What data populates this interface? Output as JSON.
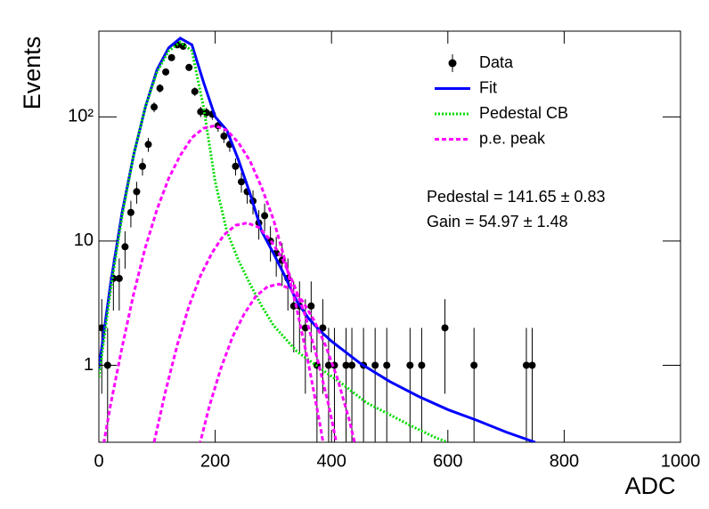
{
  "chart_data": {
    "type": "line",
    "xlabel": "ADC",
    "ylabel": "Events",
    "xlim": [
      0,
      1000
    ],
    "ylim": [
      0.24,
      490
    ],
    "log_y": true,
    "grid": false,
    "legend_position": "upper right",
    "xticks": [
      0,
      200,
      400,
      600,
      800,
      1000
    ],
    "yticks": [
      1,
      10,
      {
        "value": 100,
        "label": "10²"
      }
    ],
    "annotations": [
      "Pedestal = 141.65 ± 0.83",
      "Gain = 54.97 ± 1.48"
    ],
    "series": [
      {
        "name": "Data",
        "color": "#000000",
        "mode": "markers",
        "x": [
          5,
          15,
          25,
          35,
          45,
          55,
          65,
          75,
          85,
          95,
          105,
          115,
          125,
          135,
          145,
          155,
          165,
          175,
          185,
          195,
          205,
          215,
          225,
          235,
          245,
          255,
          265,
          275,
          285,
          295,
          305,
          315,
          325,
          335,
          345,
          355,
          365,
          375,
          385,
          395,
          405,
          425,
          435,
          455,
          475,
          495,
          535,
          555,
          595,
          645,
          735,
          745
        ],
        "values": [
          2,
          1,
          5,
          5,
          9,
          17,
          25,
          40,
          60,
          120,
          170,
          230,
          300,
          380,
          370,
          250,
          160,
          110,
          108,
          105,
          85,
          70,
          60,
          40,
          30,
          25,
          21,
          14,
          16,
          10,
          8,
          7,
          5,
          3,
          3,
          2,
          3,
          1,
          2,
          1,
          1,
          1,
          1,
          1,
          1,
          1,
          1,
          1,
          2,
          1,
          1,
          1
        ],
        "errors": [
          1.41,
          1,
          2.24,
          2.24,
          3,
          4.12,
          5,
          6.32,
          7.75,
          10.95,
          13.04,
          15.17,
          17.32,
          19.49,
          19.24,
          15.81,
          12.65,
          10.49,
          10.39,
          10.25,
          9.22,
          8.37,
          7.75,
          6.32,
          5.48,
          5,
          4.58,
          3.74,
          4,
          3.16,
          2.83,
          2.65,
          2.24,
          1.73,
          1.73,
          1.41,
          1.73,
          1,
          1.41,
          1,
          1,
          1,
          1,
          1,
          1,
          1,
          1,
          1,
          1.41,
          1,
          1,
          1
        ]
      },
      {
        "name": "Fit",
        "color": "#0000ff",
        "mode": "solid",
        "x": [
          0,
          20,
          40,
          60,
          80,
          100,
          120,
          140,
          160,
          180,
          200,
          220,
          240,
          260,
          280,
          300,
          320,
          340,
          360,
          380,
          400,
          450,
          500,
          550,
          600,
          650,
          700,
          750
        ],
        "values": [
          0.94,
          4.5,
          17,
          50,
          120,
          240,
          360,
          430,
          380,
          190,
          100,
          78,
          45,
          24,
          12,
          8,
          5.2,
          3.3,
          2.4,
          1.9,
          1.56,
          1.03,
          0.74,
          0.56,
          0.44,
          0.36,
          0.29,
          0.24
        ]
      },
      {
        "name": "Pedestal CB",
        "color": "#00dd00",
        "mode": "dotted",
        "x": [
          0,
          20,
          40,
          60,
          80,
          100,
          120,
          140,
          160,
          180,
          200,
          220,
          240,
          260,
          280,
          300,
          340,
          380,
          420,
          460,
          500,
          540,
          580,
          600
        ],
        "values": [
          0.8,
          4,
          16,
          50,
          120,
          230,
          340,
          400,
          340,
          120,
          30,
          12,
          7,
          4.5,
          3,
          2.1,
          1.3,
          0.95,
          0.7,
          0.5,
          0.4,
          0.32,
          0.26,
          0.24
        ]
      },
      {
        "name": "p.e. peak",
        "color": "#ff00ff",
        "mode": "dashed",
        "x": [
          0,
          20,
          40,
          60,
          80,
          100,
          120,
          140,
          160,
          180,
          200,
          220,
          240,
          260,
          280,
          300,
          320,
          340,
          360,
          380,
          400,
          null,
          95,
          115,
          135,
          155,
          175,
          195,
          215,
          235,
          255,
          275,
          295,
          315,
          335,
          355,
          375,
          395,
          415,
          null,
          170,
          190,
          210,
          230,
          250,
          270,
          290,
          310,
          330,
          350,
          370,
          390,
          410,
          430,
          450
        ],
        "values": [
          0.14,
          0.48,
          1.4,
          3.8,
          8.9,
          18,
          32,
          49,
          68,
          81,
          85,
          78,
          62,
          44,
          27,
          15,
          7,
          2.9,
          1.05,
          0.34,
          0.094,
          null,
          0.24,
          0.63,
          1.47,
          3,
          5.3,
          8.1,
          11.2,
          13.4,
          14,
          12.9,
          10.2,
          7.3,
          4.5,
          2.5,
          1.16,
          0.48,
          0.17,
          null,
          0.2,
          0.47,
          0.95,
          1.7,
          2.6,
          3.6,
          4.3,
          4.5,
          4.1,
          3.3,
          2.3,
          1.43,
          0.79,
          0.37,
          0.15
        ]
      }
    ]
  }
}
